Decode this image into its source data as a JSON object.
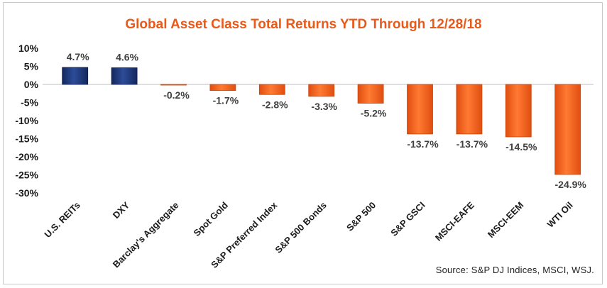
{
  "chart_data": {
    "type": "bar",
    "title": "Global Asset Class Total Returns YTD Through 12/28/18",
    "categories": [
      "U.S. REITs",
      "DXY",
      "Barclay's Aggregate",
      "Spot Gold",
      "S&P Preferred Index",
      "S&P 500 Bonds",
      "S&P 500",
      "S&P GSCI",
      "MSCI-EAFE",
      "MSCI-EEM",
      "WTI Oil"
    ],
    "values": [
      4.7,
      4.6,
      -0.2,
      -1.7,
      -2.8,
      -3.3,
      -5.2,
      -13.7,
      -13.7,
      -14.5,
      -24.9
    ],
    "data_labels": [
      "4.7%",
      "4.6%",
      "-0.2%",
      "-1.7%",
      "-2.8%",
      "-3.3%",
      "-5.2%",
      "-13.7%",
      "-13.7%",
      "-14.5%",
      "-24.9%"
    ],
    "y_ticks": [
      10,
      5,
      0,
      -5,
      -10,
      -15,
      -20,
      -25,
      -30
    ],
    "y_tick_labels": [
      "10%",
      "5%",
      "0%",
      "-5%",
      "-10%",
      "-15%",
      "-20%",
      "-25%",
      "-30%"
    ],
    "ylim": [
      -30,
      10
    ],
    "xlabel": "",
    "ylabel": "",
    "grid": false,
    "colors": {
      "positive": "#1f3a7a",
      "negative": "#f2631f"
    }
  },
  "source": "Source: S&P DJ Indices, MSCI,  WSJ."
}
